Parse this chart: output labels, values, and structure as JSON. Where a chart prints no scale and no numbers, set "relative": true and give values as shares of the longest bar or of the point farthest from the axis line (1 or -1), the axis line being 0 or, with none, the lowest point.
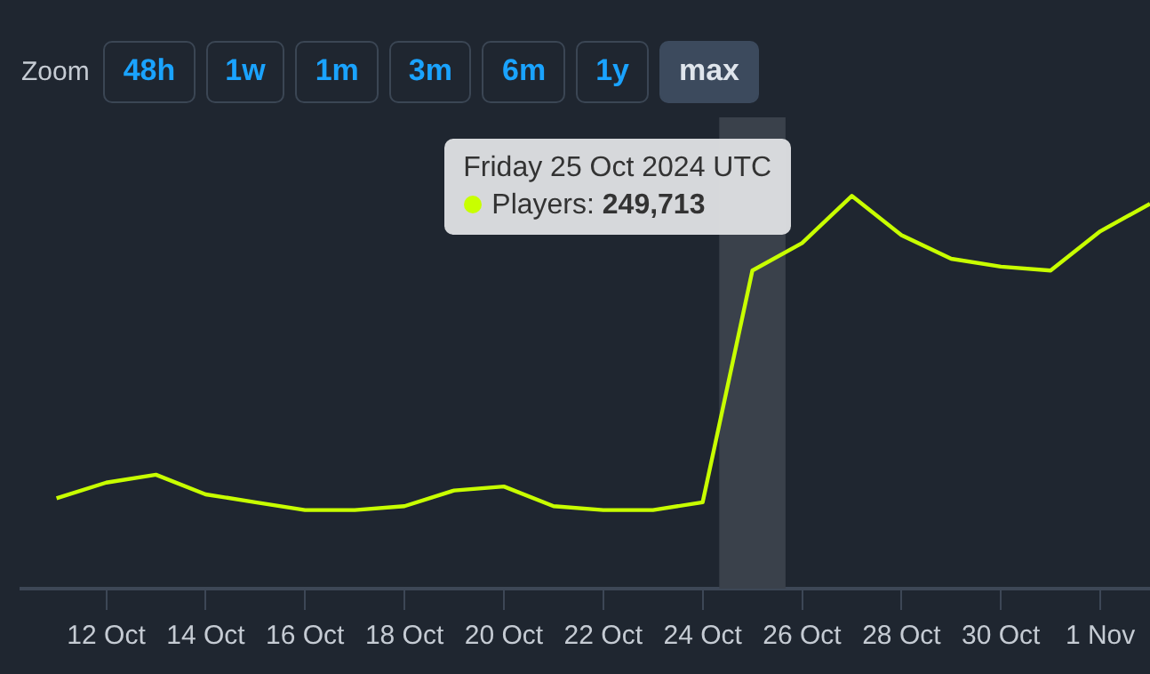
{
  "chart_data": {
    "type": "line",
    "relative": true,
    "legend": false,
    "marker": "none",
    "line_style": "solid",
    "tick_labels": "x",
    "x": [
      "2024-10-11",
      "2024-10-12",
      "2024-10-13",
      "2024-10-14",
      "2024-10-15",
      "2024-10-16",
      "2024-10-17",
      "2024-10-18",
      "2024-10-19",
      "2024-10-20",
      "2024-10-21",
      "2024-10-22",
      "2024-10-23",
      "2024-10-24",
      "2024-10-25",
      "2024-10-26",
      "2024-10-27",
      "2024-10-28",
      "2024-10-29",
      "2024-10-30",
      "2024-10-31",
      "2024-11-01",
      "2024-11-02"
    ],
    "series": [
      {
        "color": "#c8ff00",
        "values": [
          0.23,
          0.27,
          0.29,
          0.24,
          0.22,
          0.2,
          0.2,
          0.21,
          0.25,
          0.26,
          0.21,
          0.2,
          0.2,
          0.22,
          0.81,
          0.88,
          1,
          0.9,
          0.84,
          0.82,
          0.81,
          0.91,
          0.98
        ]
      }
    ],
    "xlim": [
      "2024-10-10T07:00",
      "2024-11-02"
    ],
    "xticks": [
      {
        "value": "2024-10-12",
        "label": "12 Oct"
      },
      {
        "value": "2024-10-14",
        "label": "14 Oct"
      },
      {
        "value": "2024-10-16",
        "label": "16 Oct"
      },
      {
        "value": "2024-10-18",
        "label": "18 Oct"
      },
      {
        "value": "2024-10-20",
        "label": "20 Oct"
      },
      {
        "value": "2024-10-22",
        "label": "22 Oct"
      },
      {
        "value": "2024-10-24",
        "label": "24 Oct"
      },
      {
        "value": "2024-10-26",
        "label": "26 Oct"
      },
      {
        "value": "2024-10-28",
        "label": "28 Oct"
      },
      {
        "value": "2024-10-30",
        "label": "30 Oct"
      },
      {
        "value": "2024-11-01",
        "label": "1 Nov"
      }
    ],
    "bands": [
      {
        "axis": "x",
        "from": "2024-10-24T08:00",
        "to": "2024-10-25T16:00",
        "color": "#3a414b"
      }
    ],
    "annotations": [
      "Zoom",
      "48h",
      "1w",
      "1m",
      "3m",
      "6m",
      "1y",
      "max",
      "Friday 25 Oct 2024 UTC\nPlayers: 249,713"
    ]
  }
}
